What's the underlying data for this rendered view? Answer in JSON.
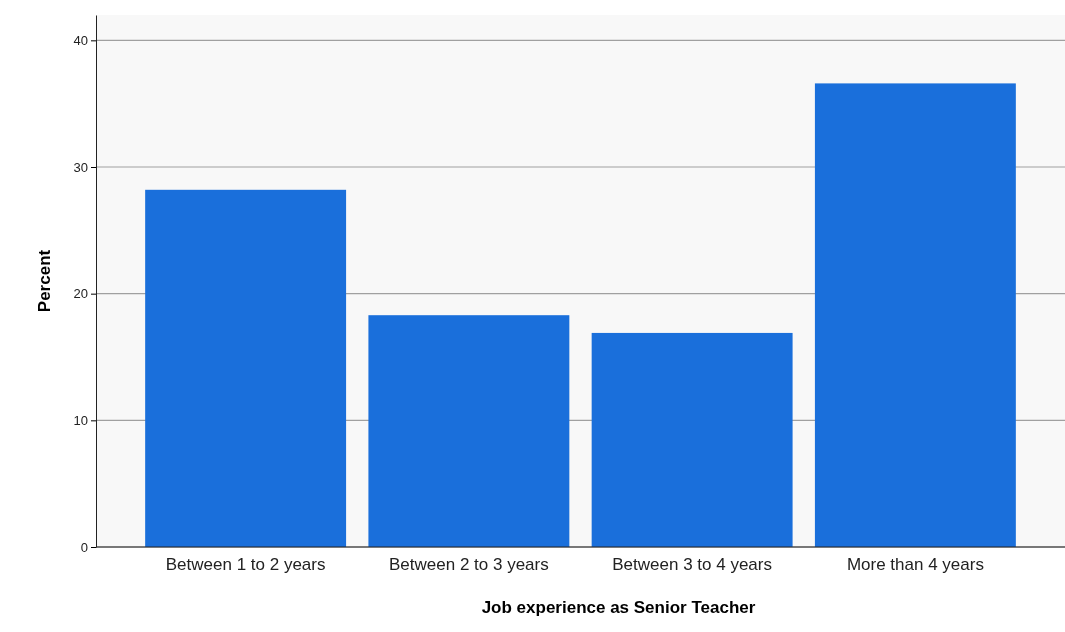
{
  "chart_data": {
    "type": "bar",
    "xlabel": "Job experience as Senior Teacher",
    "ylabel": "Percent",
    "categories": [
      "Between 1 to 2 years",
      "Between 2 to 3 years",
      "Between 3 to 4 years",
      "More than 4 years"
    ],
    "values": [
      28.2,
      18.3,
      16.9,
      36.6
    ],
    "color": "#1a6fdb",
    "ylim": [
      0,
      42
    ],
    "yticks": [
      0,
      10,
      20,
      30,
      40
    ],
    "grid": "y"
  }
}
